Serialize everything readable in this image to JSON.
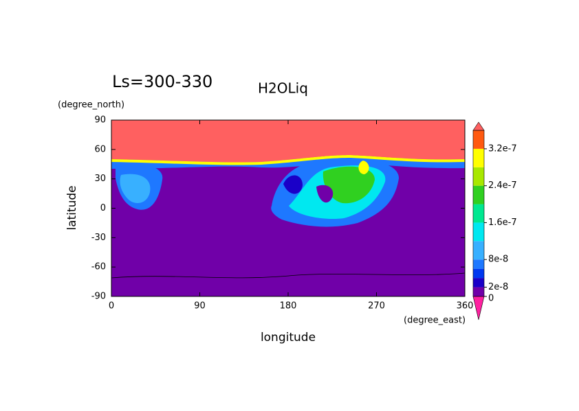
{
  "chart_data": {
    "type": "contour-map",
    "title": "H2OLiq",
    "subtitle": "Ls=300-330",
    "x_label": "longitude",
    "y_label": "latitude",
    "x_unit": "(degree_east)",
    "y_unit": "(degree_north)",
    "xlim": [
      0,
      360
    ],
    "xticks": [
      0,
      90,
      180,
      270,
      360
    ],
    "ylim": [
      -90,
      90
    ],
    "yticks": [
      -90,
      -60,
      -30,
      0,
      30,
      60,
      90
    ],
    "colorbar": {
      "clim": [
        0,
        3.6e-07
      ],
      "ticks": [
        0,
        2e-08,
        8e-08,
        1.6e-07,
        2.4e-07,
        3.2e-07
      ],
      "levels": [
        0,
        2e-08,
        4e-08,
        6e-08,
        8e-08,
        1.2e-07,
        1.6e-07,
        2e-07,
        2.4e-07,
        2.8e-07,
        3.2e-07,
        3.6e-07
      ],
      "colors": [
        "#7000a8",
        "#1a00c8",
        "#0038f0",
        "#1e78ff",
        "#38b0ff",
        "#00e8f0",
        "#00e890",
        "#30d020",
        "#a8e800",
        "#ffff00",
        "#ff5a10"
      ],
      "under_color": "#ff20a0",
      "over_color": "#ff6060"
    }
  }
}
